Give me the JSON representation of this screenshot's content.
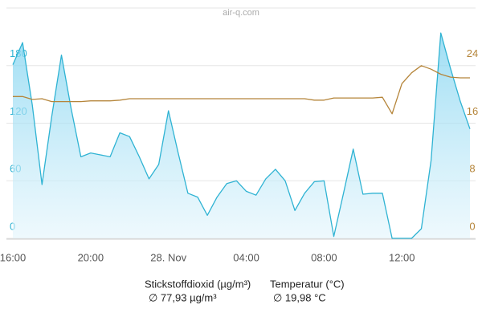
{
  "chart_data": {
    "type": "line",
    "title": "air-q.com",
    "categories": [
      "16:00",
      null,
      null,
      null,
      null,
      null,
      null,
      null,
      "20:00",
      null,
      null,
      null,
      null,
      null,
      null,
      null,
      "28. Nov",
      null,
      null,
      null,
      null,
      null,
      null,
      null,
      "04:00",
      null,
      null,
      null,
      null,
      null,
      null,
      null,
      "08:00",
      null,
      null,
      null,
      null,
      null,
      null,
      null,
      "12:00",
      null,
      null,
      null,
      null,
      null,
      null,
      null
    ],
    "series": [
      {
        "name": "Stickstoffdioxid (µg/m³)",
        "summary": "∅ 77,93 µg/m³",
        "color": "#2fb3d3",
        "fill": true,
        "values": [
          181,
          204,
          139,
          56,
          127,
          191,
          135,
          85,
          89,
          87,
          85,
          110,
          106,
          85,
          62,
          77,
          133,
          89,
          47,
          43,
          24,
          43,
          57,
          60,
          49,
          45,
          62,
          72,
          60,
          29,
          47,
          59,
          60,
          2,
          47,
          93,
          46,
          47,
          47,
          0,
          0,
          0,
          10,
          81,
          214,
          177,
          143,
          114
        ]
      },
      {
        "name": "Temperatur (°C)",
        "summary": "∅ 19,98 °C",
        "color": "#b5853a",
        "axis": "y2",
        "fill": false,
        "values": [
          19.7,
          19.7,
          19.3,
          19.4,
          19.0,
          19.0,
          19.0,
          19.0,
          19.1,
          19.1,
          19.1,
          19.2,
          19.4,
          19.4,
          19.4,
          19.4,
          19.4,
          19.4,
          19.4,
          19.4,
          19.4,
          19.4,
          19.4,
          19.4,
          19.4,
          19.4,
          19.4,
          19.4,
          19.4,
          19.4,
          19.4,
          19.2,
          19.2,
          19.5,
          19.5,
          19.5,
          19.5,
          19.5,
          19.6,
          17.3,
          21.5,
          23.0,
          24.0,
          23.5,
          22.8,
          22.4,
          22.3,
          22.3
        ]
      }
    ],
    "ylim": [
      0,
      240
    ],
    "yticks": [
      0,
      60,
      120,
      180
    ],
    "y2lim": [
      0,
      32
    ],
    "y2ticks": [
      0,
      8,
      16,
      24
    ],
    "grid": true
  }
}
